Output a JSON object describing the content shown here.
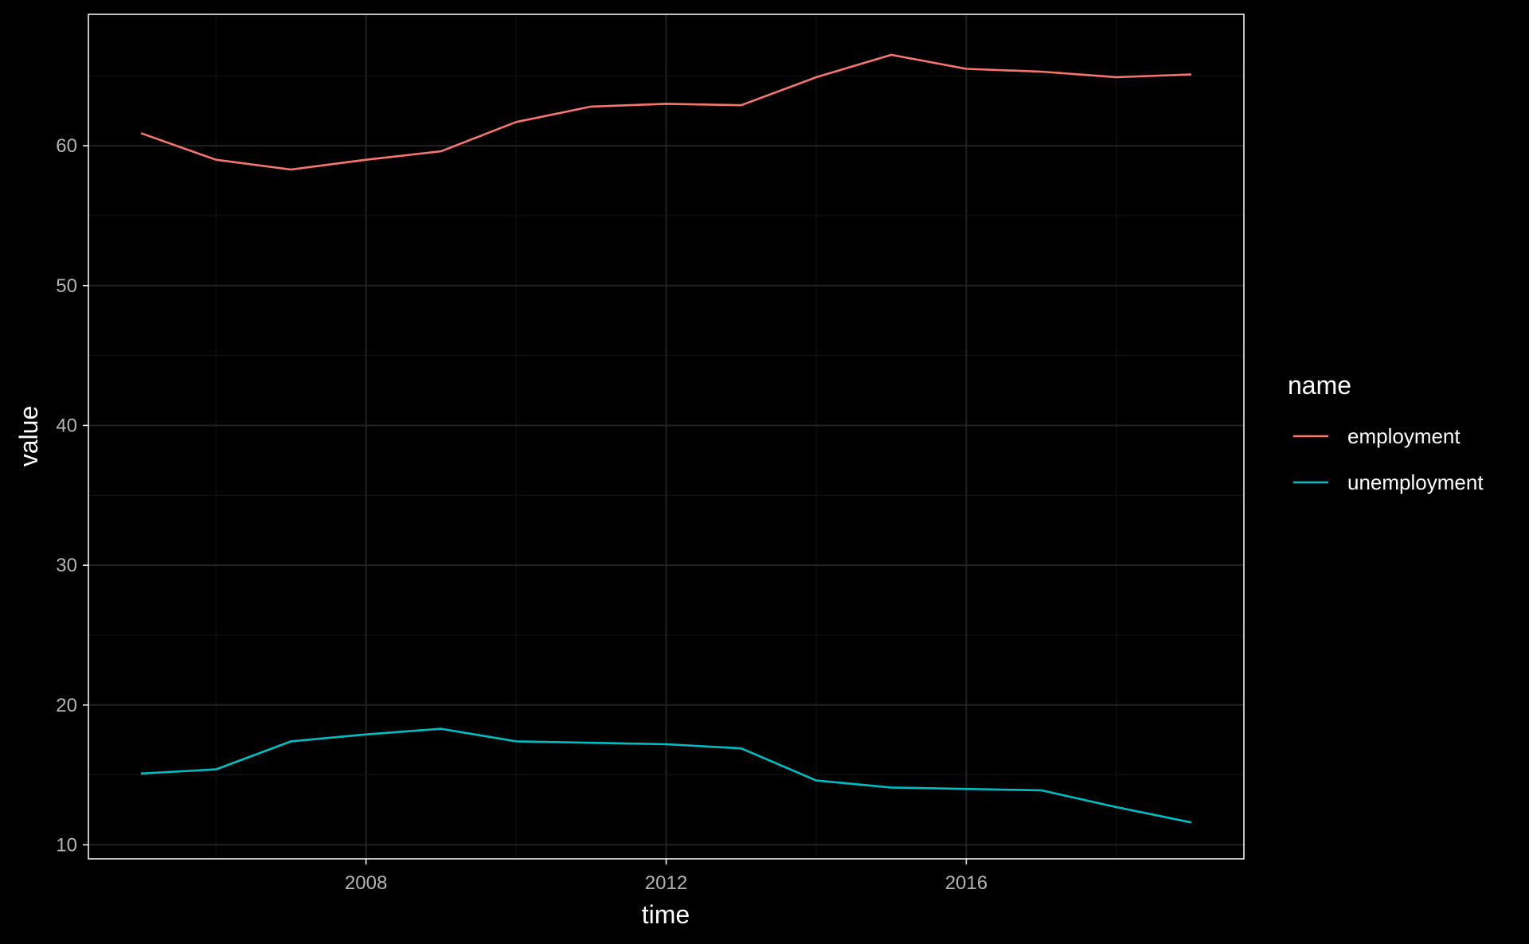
{
  "chart_data": {
    "type": "line",
    "title": "",
    "xlabel": "time",
    "ylabel": "value",
    "xlim": [
      2004.3,
      2019.7
    ],
    "ylim": [
      9.0,
      69.4
    ],
    "x_ticks": [
      2008,
      2012,
      2016
    ],
    "x_tick_labels": [
      "2008",
      "2012",
      "2016"
    ],
    "y_ticks": [
      10,
      20,
      30,
      40,
      50,
      60
    ],
    "y_tick_labels": [
      "10",
      "20",
      "30",
      "40",
      "50",
      "60"
    ],
    "grid": true,
    "legend": {
      "title": "name",
      "placement": "right"
    },
    "x": [
      2005,
      2006,
      2007,
      2008,
      2009,
      2010,
      2011,
      2012,
      2013,
      2014,
      2015,
      2016,
      2017,
      2018,
      2019
    ],
    "series": [
      {
        "name": "employment",
        "color": "#F8766D",
        "values": [
          60.9,
          59.0,
          58.3,
          59.0,
          59.6,
          61.7,
          62.8,
          63.0,
          62.9,
          64.9,
          66.5,
          65.5,
          65.3,
          64.9,
          65.1
        ]
      },
      {
        "name": "unemployment",
        "color": "#00BFC4",
        "values": [
          15.1,
          15.4,
          17.4,
          17.9,
          18.3,
          17.4,
          17.3,
          17.2,
          16.9,
          14.6,
          14.1,
          14.0,
          13.9,
          12.7,
          11.6
        ]
      }
    ]
  }
}
